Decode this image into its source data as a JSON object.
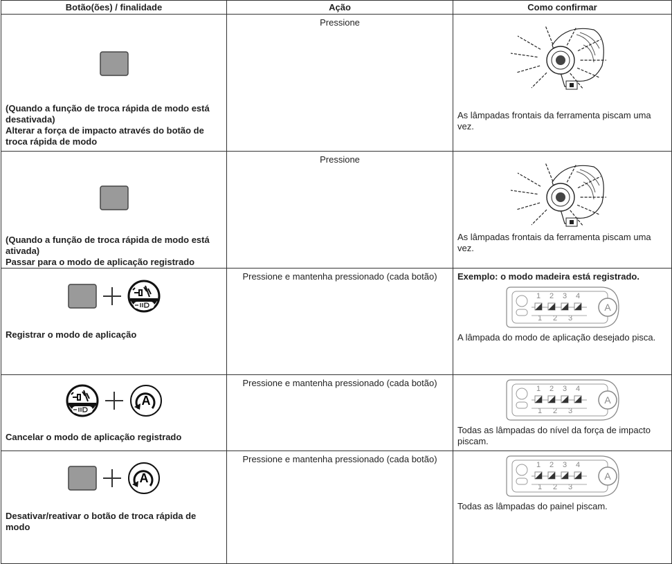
{
  "table": {
    "header": [
      "Botão(ões) / finalidade",
      "Ação",
      "Como confirmar"
    ],
    "rows": [
      {
        "purpose": [
          "(Quando a função de troca rápida de modo está desativada)",
          "Alterar a força de impacto através do botão de troca rápida de modo"
        ],
        "action": "Pressione",
        "confirm": {
          "text": "As lâmpadas frontais da ferramenta piscam uma vez."
        }
      },
      {
        "purpose": [
          "(Quando a função de troca rápida de modo está ativada)",
          "Passar para o modo de aplicação registrado"
        ],
        "action": "Pressione",
        "confirm": {
          "text": "As lâmpadas frontais da ferramenta piscam uma vez."
        }
      },
      {
        "purpose": [
          "Registrar o modo de aplicação"
        ],
        "action": "Pressione e mantenha pressionado (cada botão)",
        "confirm": {
          "note": "Exemplo: o modo madeira está registrado.",
          "text": "A lâmpada do modo de aplicação desejado pisca."
        }
      },
      {
        "purpose": [
          "Cancelar o modo de aplicação registrado"
        ],
        "action": "Pressione e mantenha pressionado (cada botão)",
        "confirm": {
          "text": "Todas as lâmpadas do nível da força de impacto piscam."
        }
      },
      {
        "purpose": [
          "Desativar/reativar o botão de troca rápida de modo"
        ],
        "action": "Pressione e mantenha pressionado (cada botão)",
        "confirm": {
          "text": "Todas as lâmpadas do painel piscam."
        }
      }
    ]
  },
  "icons": {
    "a_label": "A",
    "panel_top": [
      "1",
      "2",
      "3",
      "4"
    ],
    "panel_bottom": [
      "1",
      "2",
      "3"
    ]
  }
}
